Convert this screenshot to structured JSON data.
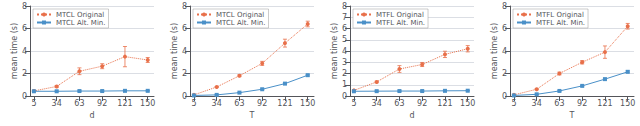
{
  "chart_data": [
    {
      "type": "line",
      "xlabel": "d",
      "ylabel": "mean time (s)",
      "x": [
        5,
        34,
        63,
        92,
        121,
        150
      ],
      "xlim": [
        0,
        158
      ],
      "xticks": [
        5,
        34,
        63,
        92,
        121,
        150
      ],
      "ylim": [
        0,
        8
      ],
      "yticks": [
        0,
        2,
        4,
        6,
        8
      ],
      "grid": true,
      "legend": "upper left",
      "series": [
        {
          "name": "MTCL Original",
          "color": "#E8704A",
          "marker": "circle",
          "line_style": "dotted",
          "values": [
            0.45,
            0.85,
            2.2,
            2.65,
            3.5,
            3.2
          ],
          "yerr": [
            0.04,
            0.08,
            0.3,
            0.22,
            0.9,
            0.22
          ]
        },
        {
          "name": "MTCL Alt. Min.",
          "color": "#4A90C8",
          "marker": "square",
          "line_style": "solid",
          "values": [
            0.42,
            0.42,
            0.44,
            0.44,
            0.46,
            0.46
          ],
          "yerr": [
            0.01,
            0.01,
            0.01,
            0.01,
            0.01,
            0.01
          ]
        }
      ]
    },
    {
      "type": "line",
      "xlabel": "T",
      "ylabel": "mean time (s)",
      "x": [
        5,
        34,
        63,
        92,
        121,
        150
      ],
      "xlim": [
        0,
        158
      ],
      "xticks": [
        5,
        34,
        63,
        92,
        121,
        150
      ],
      "ylim": [
        0,
        8
      ],
      "yticks": [
        0,
        2,
        4,
        6,
        8
      ],
      "grid": true,
      "legend": "upper left",
      "series": [
        {
          "name": "MTCL Original",
          "color": "#E8704A",
          "marker": "circle",
          "line_style": "dotted",
          "values": [
            0.1,
            0.8,
            1.8,
            2.9,
            4.7,
            6.4
          ],
          "yerr": [
            0.03,
            0.04,
            0.08,
            0.18,
            0.35,
            0.25
          ]
        },
        {
          "name": "MTCL Alt. Min.",
          "color": "#4A90C8",
          "marker": "square",
          "line_style": "solid",
          "values": [
            0.05,
            0.1,
            0.3,
            0.6,
            1.1,
            1.85
          ],
          "yerr": [
            0.01,
            0.01,
            0.02,
            0.03,
            0.05,
            0.07
          ]
        }
      ]
    },
    {
      "type": "line",
      "xlabel": "d",
      "ylabel": "mean time (s)",
      "x": [
        5,
        34,
        63,
        92,
        121,
        150
      ],
      "xlim": [
        0,
        158
      ],
      "xticks": [
        5,
        34,
        63,
        92,
        121,
        150
      ],
      "ylim": [
        0,
        8
      ],
      "yticks": [
        0,
        1,
        2,
        3,
        4,
        5,
        6,
        7,
        8
      ],
      "grid": true,
      "legend": "upper left",
      "series": [
        {
          "name": "MTFL Original",
          "color": "#E8704A",
          "marker": "circle",
          "line_style": "dotted",
          "values": [
            0.5,
            1.25,
            2.4,
            2.8,
            3.7,
            4.2
          ],
          "yerr": [
            0.04,
            0.07,
            0.3,
            0.18,
            0.28,
            0.28
          ]
        },
        {
          "name": "MTFL Alt. Min.",
          "color": "#4A90C8",
          "marker": "square",
          "line_style": "solid",
          "values": [
            0.42,
            0.43,
            0.44,
            0.44,
            0.46,
            0.47
          ],
          "yerr": [
            0.01,
            0.01,
            0.01,
            0.01,
            0.01,
            0.01
          ]
        }
      ]
    },
    {
      "type": "line",
      "xlabel": "T",
      "ylabel": "mean time (s)",
      "x": [
        5,
        34,
        63,
        92,
        121,
        150
      ],
      "xlim": [
        0,
        158
      ],
      "xticks": [
        5,
        34,
        63,
        92,
        121,
        150
      ],
      "ylim": [
        0,
        8
      ],
      "yticks": [
        0,
        2,
        4,
        6,
        8
      ],
      "grid": true,
      "legend": "upper left",
      "series": [
        {
          "name": "MTFL Original",
          "color": "#E8704A",
          "marker": "circle",
          "line_style": "dotted",
          "values": [
            0.1,
            0.6,
            2.0,
            3.0,
            3.9,
            6.2
          ],
          "yerr": [
            0.03,
            0.04,
            0.12,
            0.15,
            0.55,
            0.25
          ]
        },
        {
          "name": "MTFL Alt. Min.",
          "color": "#4A90C8",
          "marker": "square",
          "line_style": "solid",
          "values": [
            0.05,
            0.15,
            0.45,
            0.9,
            1.5,
            2.15
          ],
          "yerr": [
            0.01,
            0.01,
            0.02,
            0.03,
            0.05,
            0.08
          ]
        }
      ]
    }
  ]
}
